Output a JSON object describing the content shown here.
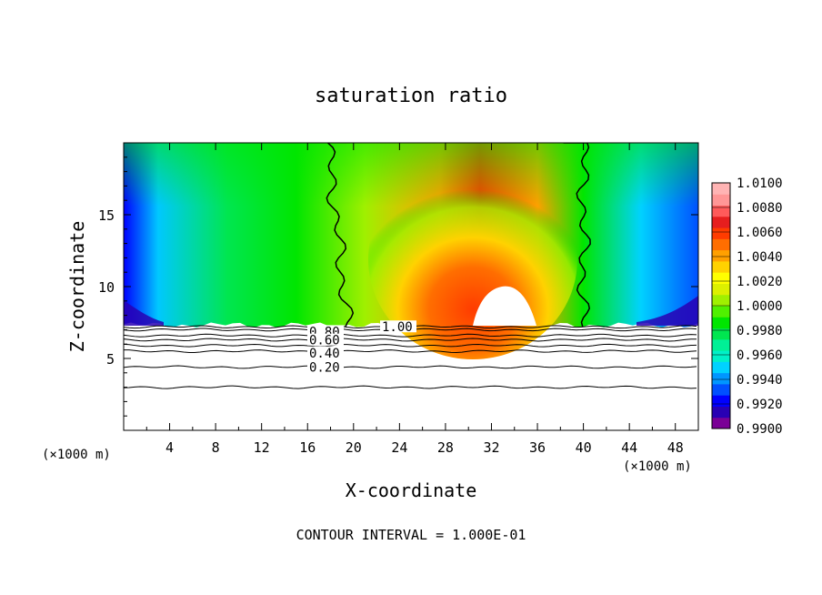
{
  "chart_data": {
    "type": "heatmap",
    "title": "saturation ratio",
    "xlabel": "X-coordinate",
    "ylabel": "Z-coordinate",
    "x_unit": "(×1000 m)",
    "x_unit_right": "(×1000 m)",
    "footer": "CONTOUR INTERVAL = 1.000E-01",
    "xlim": [
      0,
      50
    ],
    "ylim": [
      0,
      20
    ],
    "x_ticks": [
      4,
      8,
      12,
      16,
      20,
      24,
      28,
      32,
      36,
      40,
      44,
      48
    ],
    "x_tick_labels": [
      "4",
      "8",
      "12",
      "16",
      "20",
      "24",
      "28",
      "32",
      "36",
      "40",
      "44",
      "48"
    ],
    "y_ticks": [
      5,
      10,
      15
    ],
    "y_tick_labels": [
      "5",
      "10",
      "15"
    ],
    "colorbar": {
      "min": 0.99,
      "max": 1.01,
      "labels": [
        "1.0100",
        "1.0080",
        "1.0060",
        "1.0040",
        "1.0020",
        "1.0000",
        "0.9980",
        "0.9960",
        "0.9940",
        "0.9920",
        "0.9900"
      ],
      "colors": [
        "#7a0096",
        "#2800b4",
        "#0000ff",
        "#0050ff",
        "#0096ff",
        "#00d2ff",
        "#00f0c8",
        "#00f096",
        "#00e650",
        "#00e600",
        "#50f000",
        "#a0f000",
        "#dcf000",
        "#ffff00",
        "#ffd200",
        "#ffa000",
        "#ff6e00",
        "#ff3c00",
        "#e61e1e",
        "#ff5a5a",
        "#ff9696",
        "#ffb4b4"
      ]
    },
    "fill_boundary_z": 7.2,
    "unity_contour_x": [
      19.5,
      40
    ],
    "contours": [
      {
        "label": "0.80",
        "z": 7.0
      },
      {
        "label": "0.60",
        "z": 6.6
      },
      {
        "label": "0.40",
        "z": 5.9
      },
      {
        "label": "0.20",
        "z": 4.4
      },
      {
        "label": "1.00",
        "z": 7.2
      }
    ],
    "extra_contour_z": [
      3.0,
      5.5,
      6.3
    ]
  }
}
